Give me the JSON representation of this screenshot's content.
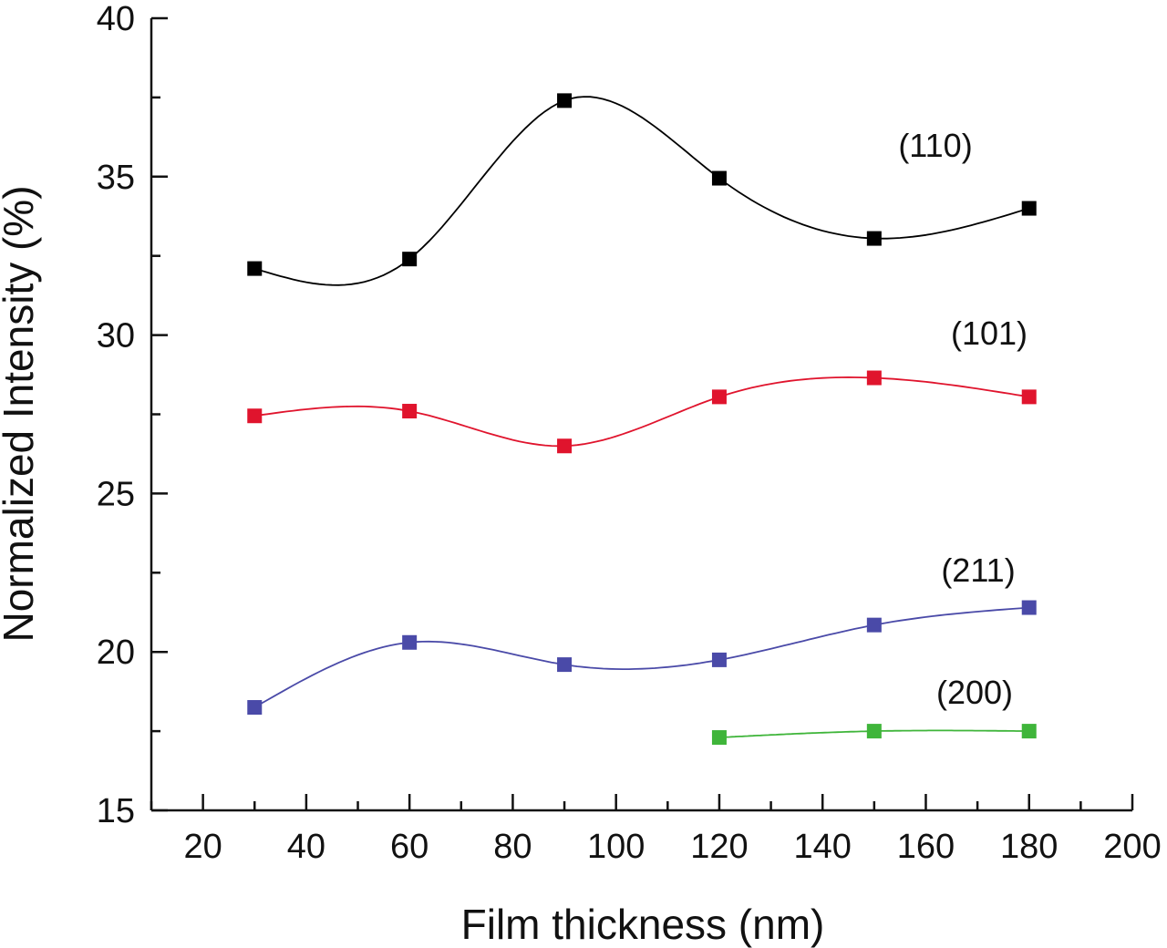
{
  "chart_data": {
    "type": "scatter",
    "title": "",
    "xlabel": "Film thickness (nm)",
    "ylabel": "Normalized Intensity (%)",
    "xlim": [
      10,
      200
    ],
    "ylim": [
      15,
      40
    ],
    "x_ticks": [
      20,
      40,
      60,
      80,
      100,
      120,
      140,
      160,
      180,
      200
    ],
    "y_ticks": [
      15,
      20,
      25,
      30,
      35,
      40
    ],
    "x_tick_labels": [
      "20",
      "40",
      "60",
      "80",
      "100",
      "120",
      "140",
      "160",
      "180",
      "200"
    ],
    "y_tick_labels": [
      "15",
      "20",
      "25",
      "30",
      "35",
      "40"
    ],
    "grid": false,
    "legend": "none",
    "series": [
      {
        "name": "(110)",
        "color": "#000000",
        "x": [
          30,
          60,
          90,
          120,
          150,
          180
        ],
        "y": [
          32.1,
          32.4,
          37.4,
          34.95,
          33.05,
          34.0
        ]
      },
      {
        "name": "(101)",
        "color": "#e0142d",
        "x": [
          30,
          60,
          90,
          120,
          150,
          180
        ],
        "y": [
          27.45,
          27.6,
          26.5,
          28.05,
          28.65,
          28.05
        ]
      },
      {
        "name": "(211)",
        "color": "#4a4aa8",
        "x": [
          30,
          60,
          90,
          120,
          150,
          180
        ],
        "y": [
          18.25,
          20.3,
          19.6,
          19.75,
          20.85,
          21.4
        ]
      },
      {
        "name": "(200)",
        "color": "#3fb53a",
        "x": [
          120,
          150,
          180
        ],
        "y": [
          17.3,
          17.5,
          17.5
        ]
      }
    ]
  }
}
